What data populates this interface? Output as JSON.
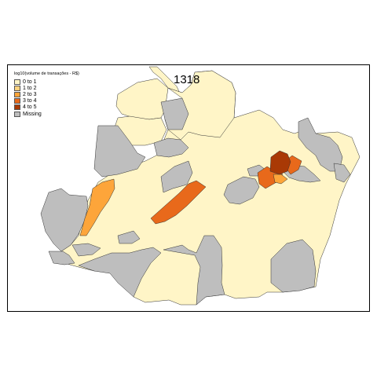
{
  "map": {
    "title": "1318",
    "legend_title": "log10(volume de transações - R$)",
    "legend": [
      {
        "label": "0 to 1",
        "color": "#FFF5C7"
      },
      {
        "label": "1 to 2",
        "color": "#FED27E"
      },
      {
        "label": "2 to 3",
        "color": "#FDA53A"
      },
      {
        "label": "3 to 4",
        "color": "#E8691B"
      },
      {
        "label": "4 to 5",
        "color": "#A93905"
      },
      {
        "label": "Missing",
        "color": "#BEBEBE"
      }
    ]
  }
}
